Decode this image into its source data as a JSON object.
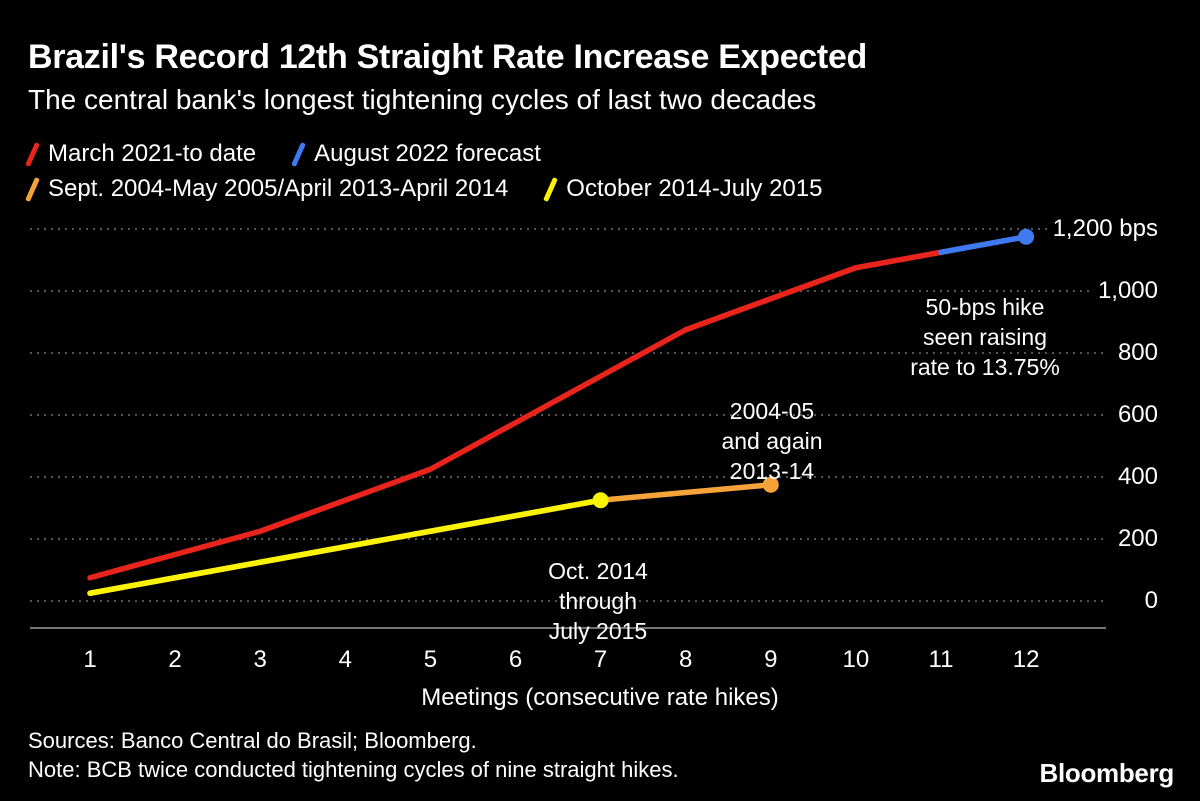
{
  "header": {
    "title": "Brazil's Record 12th Straight Rate Increase Expected",
    "subtitle": "The central bank's longest tightening cycles of last two decades"
  },
  "legend": [
    {
      "label": "March 2021-to date",
      "color": "#e8241c"
    },
    {
      "label": "August 2022 forecast",
      "color": "#3f7af2"
    },
    {
      "label": "Sept. 2004-May 2005/April 2013-April 2014",
      "color": "#f6a43a"
    },
    {
      "label": "October 2014-July 2015",
      "color": "#fbf306"
    }
  ],
  "annotations": {
    "forecast": "50-bps hike\nseen raising\nrate to 13.75%",
    "double_cycle": "2004-05\nand again\n2013-14",
    "yellow_cycle": "Oct. 2014\nthrough\nJuly 2015"
  },
  "footer": {
    "sources": "Sources: Banco Central do Brasil; Bloomberg.",
    "note": "Note: BCB twice conducted tightening cycles of nine straight hikes.",
    "brand": "Bloomberg"
  },
  "chart_data": {
    "type": "line",
    "title": "Brazil's Record 12th Straight Rate Increase Expected",
    "subtitle": "The central bank's longest tightening cycles of last two decades",
    "xlabel": "Meetings (consecutive rate hikes)",
    "ylabel": "bps",
    "ylim": [
      0,
      1200
    ],
    "ytick_step": 200,
    "grid": "dotted horizontal gridlines",
    "legend_position": "top-left",
    "x": [
      1,
      2,
      3,
      4,
      5,
      6,
      7,
      8,
      9,
      10,
      11,
      12
    ],
    "y_ticks": [
      {
        "value": 1200,
        "label": "1,200 bps"
      },
      {
        "value": 1000,
        "label": "1,000"
      },
      {
        "value": 800,
        "label": "800"
      },
      {
        "value": 600,
        "label": "600"
      },
      {
        "value": 400,
        "label": "400"
      },
      {
        "value": 200,
        "label": "200"
      },
      {
        "value": 0,
        "label": "0"
      }
    ],
    "series": [
      {
        "name": "Sept. 2004-May 2005/April 2013-April 2014",
        "color": "#f6a43a",
        "x": [
          1,
          2,
          3,
          4,
          5,
          6,
          7,
          8,
          9
        ],
        "values": [
          25,
          75,
          125,
          175,
          225,
          275,
          325,
          350,
          375
        ],
        "endpoint_dot": true
      },
      {
        "name": "October 2014-July 2015",
        "color": "#fbf306",
        "x": [
          1,
          2,
          3,
          4,
          5,
          6,
          7
        ],
        "values": [
          25,
          75,
          125,
          175,
          225,
          275,
          325
        ],
        "endpoint_dot": true
      },
      {
        "name": "March 2021-to date",
        "color": "#e8241c",
        "x": [
          1,
          2,
          3,
          4,
          5,
          6,
          7,
          8,
          9,
          10,
          11
        ],
        "values": [
          75,
          150,
          225,
          325,
          425,
          575,
          725,
          875,
          975,
          1075,
          1125
        ],
        "endpoint_dot": false
      },
      {
        "name": "August 2022 forecast",
        "color": "#3f7af2",
        "x": [
          11,
          12
        ],
        "values": [
          1125,
          1175
        ],
        "endpoint_dot": true
      }
    ]
  }
}
